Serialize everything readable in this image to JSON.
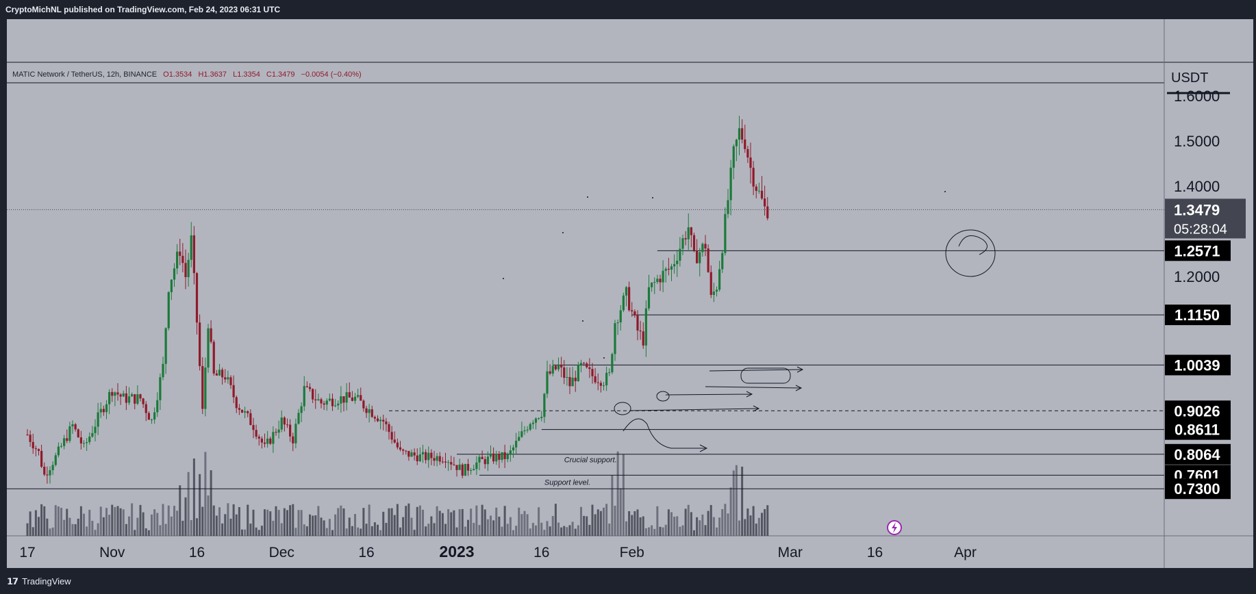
{
  "publisher_line": "CryptoMichNL published on TradingView.com, Feb 24, 2023 06:31 UTC",
  "footer": {
    "logo_glyph": "𝟭𝟳",
    "brand": "TradingView"
  },
  "colors": {
    "background": "#b2b5be",
    "frame": "#1e222d",
    "up": "#1b7a3a",
    "down": "#8f1a2a",
    "volume": "#4a4d57",
    "line": "#131722"
  },
  "chart_data": {
    "type": "candlestick",
    "symbol_line": {
      "name": "MATIC Network / TetherUS, 12h, BINANCE",
      "open": "O1.3534",
      "high": "H1.3637",
      "low": "L1.3354",
      "close": "C1.3479",
      "change": "−0.0054 (−0.40%)"
    },
    "currency": "USDT",
    "y_axis_ticks": [
      "1.6000",
      "1.5000",
      "1.4000",
      "1.2000"
    ],
    "ylim": [
      0.62,
      1.64
    ],
    "x_axis_ticks": [
      "17",
      "Nov",
      "16",
      "Dec",
      "16",
      "2023",
      "16",
      "Feb",
      "Mar",
      "16",
      "Apr"
    ],
    "x_tick_days": [
      0,
      15,
      30,
      45,
      60,
      76,
      91,
      107,
      135,
      150,
      166
    ],
    "current_price": {
      "value": 1.3479,
      "label": "1.3479",
      "countdown": "05:28:04"
    },
    "levels": [
      {
        "value": 1.2571,
        "label": "1.2571",
        "style": "solid",
        "from_day": 111.5
      },
      {
        "value": 1.115,
        "label": "1.1150",
        "style": "solid",
        "from_day": 107
      },
      {
        "value": 1.0039,
        "label": "1.0039",
        "style": "solid",
        "from_day": 93
      },
      {
        "value": 0.9026,
        "label": "0.9026",
        "style": "dashed",
        "from_day": 64
      },
      {
        "value": 0.8611,
        "label": "0.8611",
        "style": "solid",
        "from_day": 91
      },
      {
        "value": 0.8064,
        "label": "0.8064",
        "style": "solid",
        "from_day": 76
      },
      {
        "value": 0.7601,
        "label": "0.7601",
        "style": "solid",
        "from_day": 80
      },
      {
        "value": 0.73,
        "label": "0.7300",
        "style": "solid",
        "from_day": 0
      }
    ],
    "annotations": [
      {
        "text": "Crucial support.",
        "day": 95,
        "value": 0.795
      },
      {
        "text": "Support level.",
        "day": 91.5,
        "value": 0.745
      }
    ],
    "anchor_prices": [
      [
        0,
        0.85
      ],
      [
        2,
        0.81
      ],
      [
        3,
        0.76
      ],
      [
        5,
        0.8
      ],
      [
        8,
        0.87
      ],
      [
        10,
        0.82
      ],
      [
        13,
        0.9
      ],
      [
        15,
        0.95
      ],
      [
        17,
        0.93
      ],
      [
        20,
        0.93
      ],
      [
        22,
        0.88
      ],
      [
        24,
        1.0
      ],
      [
        25,
        1.18
      ],
      [
        27,
        1.26
      ],
      [
        28,
        1.2
      ],
      [
        29,
        1.28
      ],
      [
        30,
        1.1
      ],
      [
        31,
        0.9
      ],
      [
        32,
        1.1
      ],
      [
        33,
        0.98
      ],
      [
        35,
        0.98
      ],
      [
        37,
        0.92
      ],
      [
        40,
        0.87
      ],
      [
        42,
        0.82
      ],
      [
        45,
        0.88
      ],
      [
        47,
        0.84
      ],
      [
        49,
        0.95
      ],
      [
        52,
        0.92
      ],
      [
        55,
        0.93
      ],
      [
        58,
        0.93
      ],
      [
        60,
        0.91
      ],
      [
        63,
        0.88
      ],
      [
        66,
        0.81
      ],
      [
        70,
        0.8
      ],
      [
        74,
        0.8
      ],
      [
        77,
        0.77
      ],
      [
        80,
        0.79
      ],
      [
        83,
        0.8
      ],
      [
        85,
        0.8
      ],
      [
        87,
        0.84
      ],
      [
        89,
        0.88
      ],
      [
        91,
        0.9
      ],
      [
        92,
        0.98
      ],
      [
        94,
        1.0
      ],
      [
        96,
        0.96
      ],
      [
        98,
        1.0
      ],
      [
        100,
        0.98
      ],
      [
        102,
        0.97
      ],
      [
        103,
        0.98
      ],
      [
        104,
        1.1
      ],
      [
        106,
        1.16
      ],
      [
        108,
        1.08
      ],
      [
        109,
        1.06
      ],
      [
        110,
        1.17
      ],
      [
        112,
        1.2
      ],
      [
        114,
        1.22
      ],
      [
        116,
        1.28
      ],
      [
        117,
        1.31
      ],
      [
        118,
        1.24
      ],
      [
        120,
        1.27
      ],
      [
        121,
        1.15
      ],
      [
        122,
        1.18
      ],
      [
        123,
        1.27
      ],
      [
        125,
        1.47
      ],
      [
        126,
        1.52
      ],
      [
        127,
        1.5
      ],
      [
        128,
        1.44
      ],
      [
        129,
        1.4
      ],
      [
        130.5,
        1.35
      ],
      [
        131,
        1.348
      ]
    ]
  }
}
